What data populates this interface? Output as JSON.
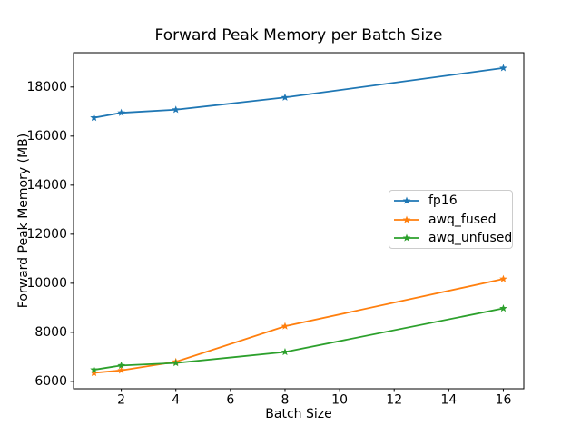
{
  "chart_data": {
    "type": "line",
    "title": "Forward Peak Memory per Batch Size",
    "xlabel": "Batch Size",
    "ylabel": "Forward Peak Memory (MB)",
    "x": [
      1,
      2,
      4,
      8,
      16
    ],
    "series": [
      {
        "name": "fp16",
        "color": "#1f77b4",
        "values": [
          16750,
          16950,
          17075,
          17575,
          18775
        ]
      },
      {
        "name": "awq_fused",
        "color": "#ff7f0e",
        "values": [
          6350,
          6450,
          6800,
          8250,
          10175
        ]
      },
      {
        "name": "awq_unfused",
        "color": "#2ca02c",
        "values": [
          6475,
          6650,
          6750,
          7200,
          8975
        ]
      }
    ],
    "xticks": [
      2,
      4,
      6,
      8,
      10,
      12,
      14,
      16
    ],
    "yticks": [
      6000,
      8000,
      10000,
      12000,
      14000,
      16000,
      18000
    ],
    "xlim": [
      0.25,
      16.75
    ],
    "ylim": [
      5700,
      19400
    ],
    "grid": false,
    "marker": "star",
    "legend_position": "center-right",
    "background": "#ffffff",
    "spine_color": "#000000",
    "legend_edge_color": "#cccccc"
  }
}
